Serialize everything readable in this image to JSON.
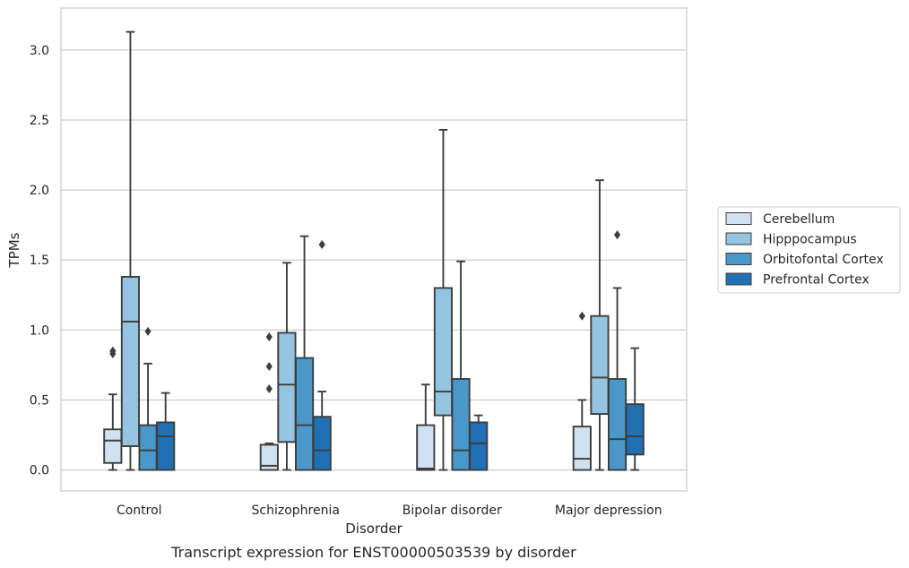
{
  "chart_data": {
    "type": "box",
    "xlabel": "Disorder",
    "ylabel": "TPMs",
    "caption": "Transcript expression for ENST00000503539 by disorder",
    "ylim": [
      -0.15,
      3.3
    ],
    "yticks": [
      "0.0",
      "0.5",
      "1.0",
      "1.5",
      "2.0",
      "2.5",
      "3.0"
    ],
    "grid": "horizontal",
    "legend_position": "right",
    "categories": [
      "Control",
      "Schizophrenia",
      "Bipolar disorder",
      "Major depression"
    ],
    "series": [
      {
        "name": "Cerebellum",
        "color": "#d0e1f2",
        "boxes": [
          {
            "whislo": 0.0,
            "q1": 0.05,
            "med": 0.21,
            "q3": 0.29,
            "whishi": 0.54,
            "fliers": [
              0.83,
              0.85
            ]
          },
          {
            "whislo": 0.0,
            "q1": 0.0,
            "med": 0.03,
            "q3": 0.18,
            "whishi": 0.19,
            "fliers": [
              0.58,
              0.74,
              0.95
            ]
          },
          {
            "whislo": 0.0,
            "q1": 0.0,
            "med": 0.01,
            "q3": 0.32,
            "whishi": 0.61,
            "fliers": []
          },
          {
            "whislo": 0.0,
            "q1": 0.0,
            "med": 0.08,
            "q3": 0.31,
            "whishi": 0.5,
            "fliers": [
              1.1
            ]
          }
        ]
      },
      {
        "name": "Hipppocampus",
        "color": "#94c4df",
        "boxes": [
          {
            "whislo": 0.0,
            "q1": 0.17,
            "med": 1.06,
            "q3": 1.38,
            "whishi": 3.13,
            "fliers": []
          },
          {
            "whislo": 0.0,
            "q1": 0.2,
            "med": 0.61,
            "q3": 0.98,
            "whishi": 1.48,
            "fliers": []
          },
          {
            "whislo": 0.0,
            "q1": 0.39,
            "med": 0.56,
            "q3": 1.3,
            "whishi": 2.43,
            "fliers": []
          },
          {
            "whislo": 0.0,
            "q1": 0.4,
            "med": 0.66,
            "q3": 1.1,
            "whishi": 2.07,
            "fliers": []
          }
        ]
      },
      {
        "name": "Orbitofontal Cortex",
        "color": "#4a98c9",
        "boxes": [
          {
            "whislo": 0.0,
            "q1": 0.0,
            "med": 0.14,
            "q3": 0.32,
            "whishi": 0.76,
            "fliers": [
              0.99
            ]
          },
          {
            "whislo": 0.0,
            "q1": 0.0,
            "med": 0.32,
            "q3": 0.8,
            "whishi": 1.67,
            "fliers": []
          },
          {
            "whislo": 0.0,
            "q1": 0.0,
            "med": 0.14,
            "q3": 0.65,
            "whishi": 1.49,
            "fliers": []
          },
          {
            "whislo": 0.0,
            "q1": 0.0,
            "med": 0.22,
            "q3": 0.65,
            "whishi": 1.3,
            "fliers": [
              1.68
            ]
          }
        ]
      },
      {
        "name": "Prefrontal Cortex",
        "color": "#2070b4",
        "boxes": [
          {
            "whislo": 0.0,
            "q1": 0.0,
            "med": 0.24,
            "q3": 0.34,
            "whishi": 0.55,
            "fliers": []
          },
          {
            "whislo": 0.0,
            "q1": 0.0,
            "med": 0.14,
            "q3": 0.38,
            "whishi": 0.56,
            "fliers": [
              1.61
            ]
          },
          {
            "whislo": 0.0,
            "q1": 0.0,
            "med": 0.19,
            "q3": 0.34,
            "whishi": 0.39,
            "fliers": []
          },
          {
            "whislo": 0.0,
            "q1": 0.11,
            "med": 0.24,
            "q3": 0.47,
            "whishi": 0.87,
            "fliers": []
          }
        ]
      }
    ]
  }
}
